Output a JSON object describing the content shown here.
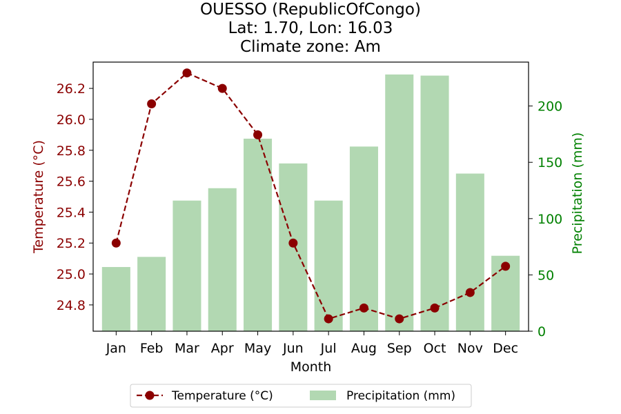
{
  "chart_data": {
    "type": "bar+line",
    "title_lines": [
      "OUESSO (RepublicOfCongo)",
      "Lat: 1.70, Lon: 16.03",
      "Climate zone: Am"
    ],
    "xlabel": "Month",
    "ylabel_left": "Temperature (°C)",
    "ylabel_right": "Precipitation (mm)",
    "categories": [
      "Jan",
      "Feb",
      "Mar",
      "Apr",
      "May",
      "Jun",
      "Jul",
      "Aug",
      "Sep",
      "Oct",
      "Nov",
      "Dec"
    ],
    "temperature": {
      "name": "Temperature (°C)",
      "values": [
        25.2,
        26.1,
        26.3,
        26.2,
        25.9,
        25.2,
        24.71,
        24.78,
        24.71,
        24.78,
        24.88,
        25.05
      ],
      "ylim": [
        24.63,
        26.37
      ],
      "ticks": [
        24.8,
        25.0,
        25.2,
        25.4,
        25.6,
        25.8,
        26.0,
        26.2
      ],
      "tick_labels": [
        "24.8",
        "25.0",
        "25.2",
        "25.4",
        "25.6",
        "25.8",
        "26.0",
        "26.2"
      ]
    },
    "precipitation": {
      "name": "Precipitation (mm)",
      "values": [
        57,
        66,
        116,
        127,
        171,
        149,
        116,
        164,
        228,
        227,
        140,
        67
      ],
      "ylim": [
        0,
        239
      ],
      "ticks": [
        0,
        50,
        100,
        150,
        200
      ],
      "tick_labels": [
        "0",
        "50",
        "100",
        "150",
        "200"
      ]
    },
    "colors": {
      "temperature_line": "#8b0000",
      "temperature_marker": "#8b0000",
      "bars": "#b2d8b2",
      "left_axis": "#8b0000",
      "right_axis": "#008000"
    },
    "legend": {
      "placement": "bottom-center",
      "items": [
        "Temperature (°C)",
        "Precipitation (mm)"
      ]
    }
  }
}
